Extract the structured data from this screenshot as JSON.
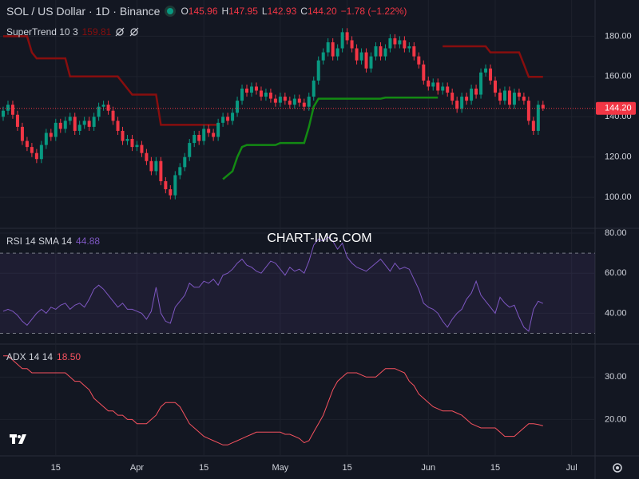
{
  "chart_data": [
    {
      "type": "candlestick",
      "title": "SOL / US Dollar · 1D · Binance",
      "ohlc_labels": [
        "O",
        "H",
        "L",
        "C"
      ],
      "header_values": [
        "145.96",
        "147.95",
        "142.93",
        "144.20"
      ],
      "change_label": "−1.78 (−1.22%)",
      "up_color": "#089981",
      "down_color": "#f23645",
      "open": [
        140,
        143,
        146,
        141,
        135,
        128,
        125,
        122,
        119,
        126,
        132,
        130,
        137,
        134,
        138,
        140,
        133,
        136,
        138,
        135,
        140,
        145,
        146,
        143,
        138,
        133,
        128,
        129,
        125,
        126,
        122,
        118,
        113,
        118,
        108,
        104,
        101,
        111,
        115,
        120,
        127,
        131,
        128,
        134,
        132,
        130,
        137,
        140,
        138,
        142,
        148,
        154,
        152,
        155,
        153,
        150,
        152,
        149,
        147,
        150,
        148,
        146,
        149,
        147,
        145,
        150,
        158,
        168,
        172,
        177,
        170,
        174,
        182,
        178,
        174,
        168,
        172,
        164,
        170,
        175,
        170,
        174,
        179,
        176,
        178,
        174,
        175,
        170,
        166,
        158,
        155,
        157,
        153,
        155,
        152,
        148,
        144,
        150,
        148,
        154,
        151,
        162,
        164,
        158,
        152,
        148,
        153,
        146,
        152,
        150,
        148,
        138,
        133,
        145.96
      ],
      "high": [
        145,
        148,
        148,
        143,
        137,
        130,
        127,
        124,
        128,
        134,
        134,
        139,
        139,
        140,
        142,
        142,
        138,
        140,
        140,
        142,
        147,
        148,
        148,
        145,
        140,
        135,
        131,
        131,
        128,
        128,
        124,
        120,
        120,
        120,
        110,
        106,
        113,
        117,
        122,
        129,
        133,
        133,
        136,
        136,
        134,
        139,
        142,
        142,
        144,
        150,
        156,
        156,
        157,
        157,
        155,
        154,
        154,
        151,
        152,
        152,
        150,
        151,
        151,
        149,
        152,
        160,
        170,
        174,
        179,
        179,
        176,
        184,
        184,
        180,
        176,
        174,
        174,
        172,
        177,
        177,
        176,
        181,
        181,
        180,
        180,
        177,
        177,
        172,
        168,
        160,
        159,
        159,
        157,
        157,
        154,
        150,
        152,
        152,
        156,
        156,
        164,
        166,
        166,
        160,
        154,
        155,
        155,
        154,
        154,
        152,
        150,
        140,
        148,
        147.95
      ],
      "low": [
        138,
        141,
        139,
        133,
        126,
        123,
        120,
        117,
        117,
        124,
        128,
        128,
        132,
        132,
        136,
        131,
        131,
        134,
        133,
        133,
        138,
        143,
        141,
        136,
        131,
        126,
        126,
        123,
        123,
        120,
        116,
        111,
        111,
        106,
        102,
        99,
        99,
        109,
        113,
        118,
        125,
        126,
        126,
        130,
        128,
        128,
        135,
        136,
        136,
        140,
        146,
        150,
        150,
        151,
        148,
        148,
        147,
        145,
        145,
        146,
        144,
        144,
        145,
        143,
        143,
        148,
        156,
        166,
        170,
        168,
        168,
        172,
        176,
        172,
        166,
        166,
        162,
        162,
        168,
        168,
        168,
        172,
        174,
        174,
        172,
        172,
        168,
        164,
        156,
        153,
        153,
        151,
        151,
        150,
        146,
        142,
        142,
        146,
        146,
        149,
        149,
        160,
        156,
        150,
        146,
        146,
        144,
        144,
        148,
        146,
        136,
        131,
        131,
        142.93
      ],
      "close": [
        143,
        146,
        141,
        135,
        128,
        125,
        122,
        119,
        126,
        132,
        130,
        137,
        134,
        138,
        140,
        133,
        136,
        138,
        135,
        140,
        145,
        146,
        143,
        138,
        133,
        128,
        129,
        125,
        126,
        122,
        118,
        113,
        118,
        108,
        104,
        101,
        111,
        115,
        120,
        127,
        131,
        128,
        134,
        132,
        130,
        137,
        140,
        138,
        142,
        148,
        154,
        152,
        155,
        153,
        150,
        152,
        149,
        147,
        150,
        148,
        146,
        149,
        147,
        145,
        150,
        158,
        168,
        172,
        177,
        170,
        174,
        182,
        178,
        174,
        168,
        172,
        164,
        170,
        175,
        170,
        174,
        179,
        176,
        178,
        174,
        175,
        170,
        166,
        158,
        155,
        157,
        153,
        155,
        152,
        148,
        144,
        150,
        148,
        154,
        151,
        162,
        164,
        158,
        152,
        148,
        153,
        146,
        152,
        150,
        148,
        138,
        133,
        145.98,
        144.2
      ],
      "supertrend": {
        "name": "SuperTrend 10 3",
        "value": 159.81,
        "up": {
          "color": "#138a13",
          "values": [
            null,
            null,
            null,
            null,
            null,
            null,
            null,
            null,
            null,
            null,
            null,
            null,
            null,
            null,
            null,
            null,
            null,
            null,
            null,
            null,
            null,
            null,
            null,
            null,
            null,
            null,
            null,
            null,
            null,
            null,
            null,
            null,
            null,
            null,
            null,
            null,
            null,
            null,
            null,
            null,
            null,
            null,
            null,
            null,
            null,
            null,
            109,
            111,
            113,
            120,
            125,
            126,
            126,
            126,
            126,
            126,
            126,
            126,
            127,
            127,
            127,
            127,
            127,
            127,
            135,
            145,
            149,
            149,
            149,
            149,
            149,
            149,
            149,
            149,
            149,
            149,
            149,
            149,
            149,
            149,
            149.5,
            149.5,
            149.5,
            149.5,
            149.5,
            149.5,
            149.5,
            149.5,
            149.5,
            149.5,
            149.5,
            149.5,
            null,
            null,
            null,
            null,
            null,
            null,
            null,
            null,
            null,
            null,
            null,
            null,
            null,
            null,
            null,
            null,
            null,
            null,
            null,
            null,
            null,
            null
          ]
        },
        "down": {
          "color": "#880e0e",
          "values": [
            180,
            180,
            180,
            180,
            180,
            180,
            172,
            169,
            169,
            169,
            169,
            169,
            169,
            169,
            160,
            160,
            160,
            160,
            160,
            160,
            160,
            160,
            160,
            160,
            160,
            157,
            154,
            151,
            151,
            151,
            151,
            151,
            151,
            136,
            136,
            136,
            136,
            136,
            136,
            136,
            136,
            136,
            136,
            136,
            136,
            136,
            null,
            null,
            null,
            null,
            null,
            null,
            null,
            null,
            null,
            null,
            null,
            null,
            null,
            null,
            null,
            null,
            null,
            null,
            null,
            null,
            null,
            null,
            null,
            null,
            null,
            null,
            null,
            null,
            null,
            null,
            null,
            null,
            null,
            null,
            null,
            null,
            null,
            null,
            null,
            null,
            null,
            null,
            null,
            null,
            null,
            null,
            175,
            175,
            175,
            175,
            175,
            175,
            175,
            175,
            175,
            175,
            172,
            172,
            172,
            172,
            172,
            172,
            172,
            166,
            159.81,
            159.81,
            159.81,
            159.81
          ]
        }
      },
      "xlim": [
        -0.67,
        123.9
      ],
      "xticks": [
        {
          "value": 11,
          "label": "15"
        },
        {
          "value": 28,
          "label": "Apr"
        },
        {
          "value": 42,
          "label": "15"
        },
        {
          "value": 58,
          "label": "May"
        },
        {
          "value": 72,
          "label": "15"
        },
        {
          "value": 89,
          "label": "Jun"
        },
        {
          "value": 103,
          "label": "15"
        },
        {
          "value": 119,
          "label": "Jul"
        }
      ],
      "ylim": [
        85,
        198
      ],
      "yticks": [
        {
          "value": 100,
          "label": "100.00"
        },
        {
          "value": 120,
          "label": "120.00"
        },
        {
          "value": 140,
          "label": "140.00"
        },
        {
          "value": 160,
          "label": "160.00"
        },
        {
          "value": 180,
          "label": "180.00"
        }
      ],
      "grid": true,
      "watermark": "CHART-IMG.COM"
    },
    {
      "type": "line",
      "name": "RSI 14 SMA 14",
      "value": 44.88,
      "color": "#7e57c2",
      "band": [
        30,
        70
      ],
      "values": [
        41,
        42,
        41,
        39,
        36,
        34,
        37,
        40,
        42,
        40,
        43,
        42,
        44,
        45,
        42,
        44,
        45,
        43,
        47,
        52,
        54,
        52,
        49,
        46,
        43,
        45,
        42,
        42,
        41,
        40,
        37,
        41,
        53,
        40,
        36,
        35,
        43,
        46,
        49,
        55,
        53,
        53,
        56,
        55,
        57,
        54,
        59,
        60,
        62,
        65,
        67,
        64,
        63,
        61,
        60,
        63,
        66,
        65,
        62,
        59,
        63,
        61,
        62,
        60,
        66,
        74,
        77,
        76,
        78,
        76,
        72,
        75,
        68,
        65,
        63,
        62,
        61,
        63,
        65,
        67,
        64,
        61,
        65,
        62,
        63,
        62,
        57,
        52,
        45,
        43,
        42,
        40,
        36,
        33,
        37,
        40,
        42,
        47,
        50,
        56,
        49,
        46,
        43,
        40,
        48,
        45,
        43,
        44,
        38,
        33,
        31,
        42,
        46,
        44.88
      ],
      "ylim": [
        25,
        82
      ],
      "yticks": [
        {
          "value": 40,
          "label": "40.00"
        },
        {
          "value": 60,
          "label": "60.00"
        },
        {
          "value": 80,
          "label": "80.00"
        }
      ]
    },
    {
      "type": "line",
      "name": "ADX 14 14",
      "value": 18.5,
      "value_label": "18.50",
      "color": "#f7525f",
      "values": [
        35,
        35,
        34,
        33,
        32,
        32,
        31,
        31,
        31,
        31,
        31,
        31,
        31,
        31,
        30,
        29,
        29,
        28,
        27,
        25,
        24,
        23,
        22,
        22,
        21,
        21,
        20,
        20,
        19,
        19,
        19,
        20,
        21,
        23,
        24,
        24,
        24,
        23,
        21,
        19,
        18,
        17,
        16,
        15.5,
        15,
        14.5,
        14,
        14,
        14.5,
        15,
        15.5,
        16,
        16.5,
        17,
        17,
        17,
        17,
        17,
        17,
        16.5,
        16.5,
        16,
        15.5,
        14.5,
        15,
        17,
        19,
        21,
        24,
        27,
        29,
        30,
        31,
        31,
        31,
        30.5,
        30,
        30,
        30,
        31,
        32,
        32,
        32,
        31.5,
        31,
        29,
        28,
        26,
        25,
        24,
        23,
        22.5,
        22,
        22,
        22,
        21.5,
        21,
        20,
        19,
        18.5,
        18,
        18,
        18,
        18,
        17,
        16,
        16,
        16,
        17,
        18,
        19,
        19,
        18.8,
        18.5
      ],
      "ylim": [
        11.6,
        37.6
      ],
      "yticks": [
        {
          "value": 20,
          "label": "20.00"
        },
        {
          "value": 30,
          "label": "30.00"
        }
      ]
    }
  ]
}
